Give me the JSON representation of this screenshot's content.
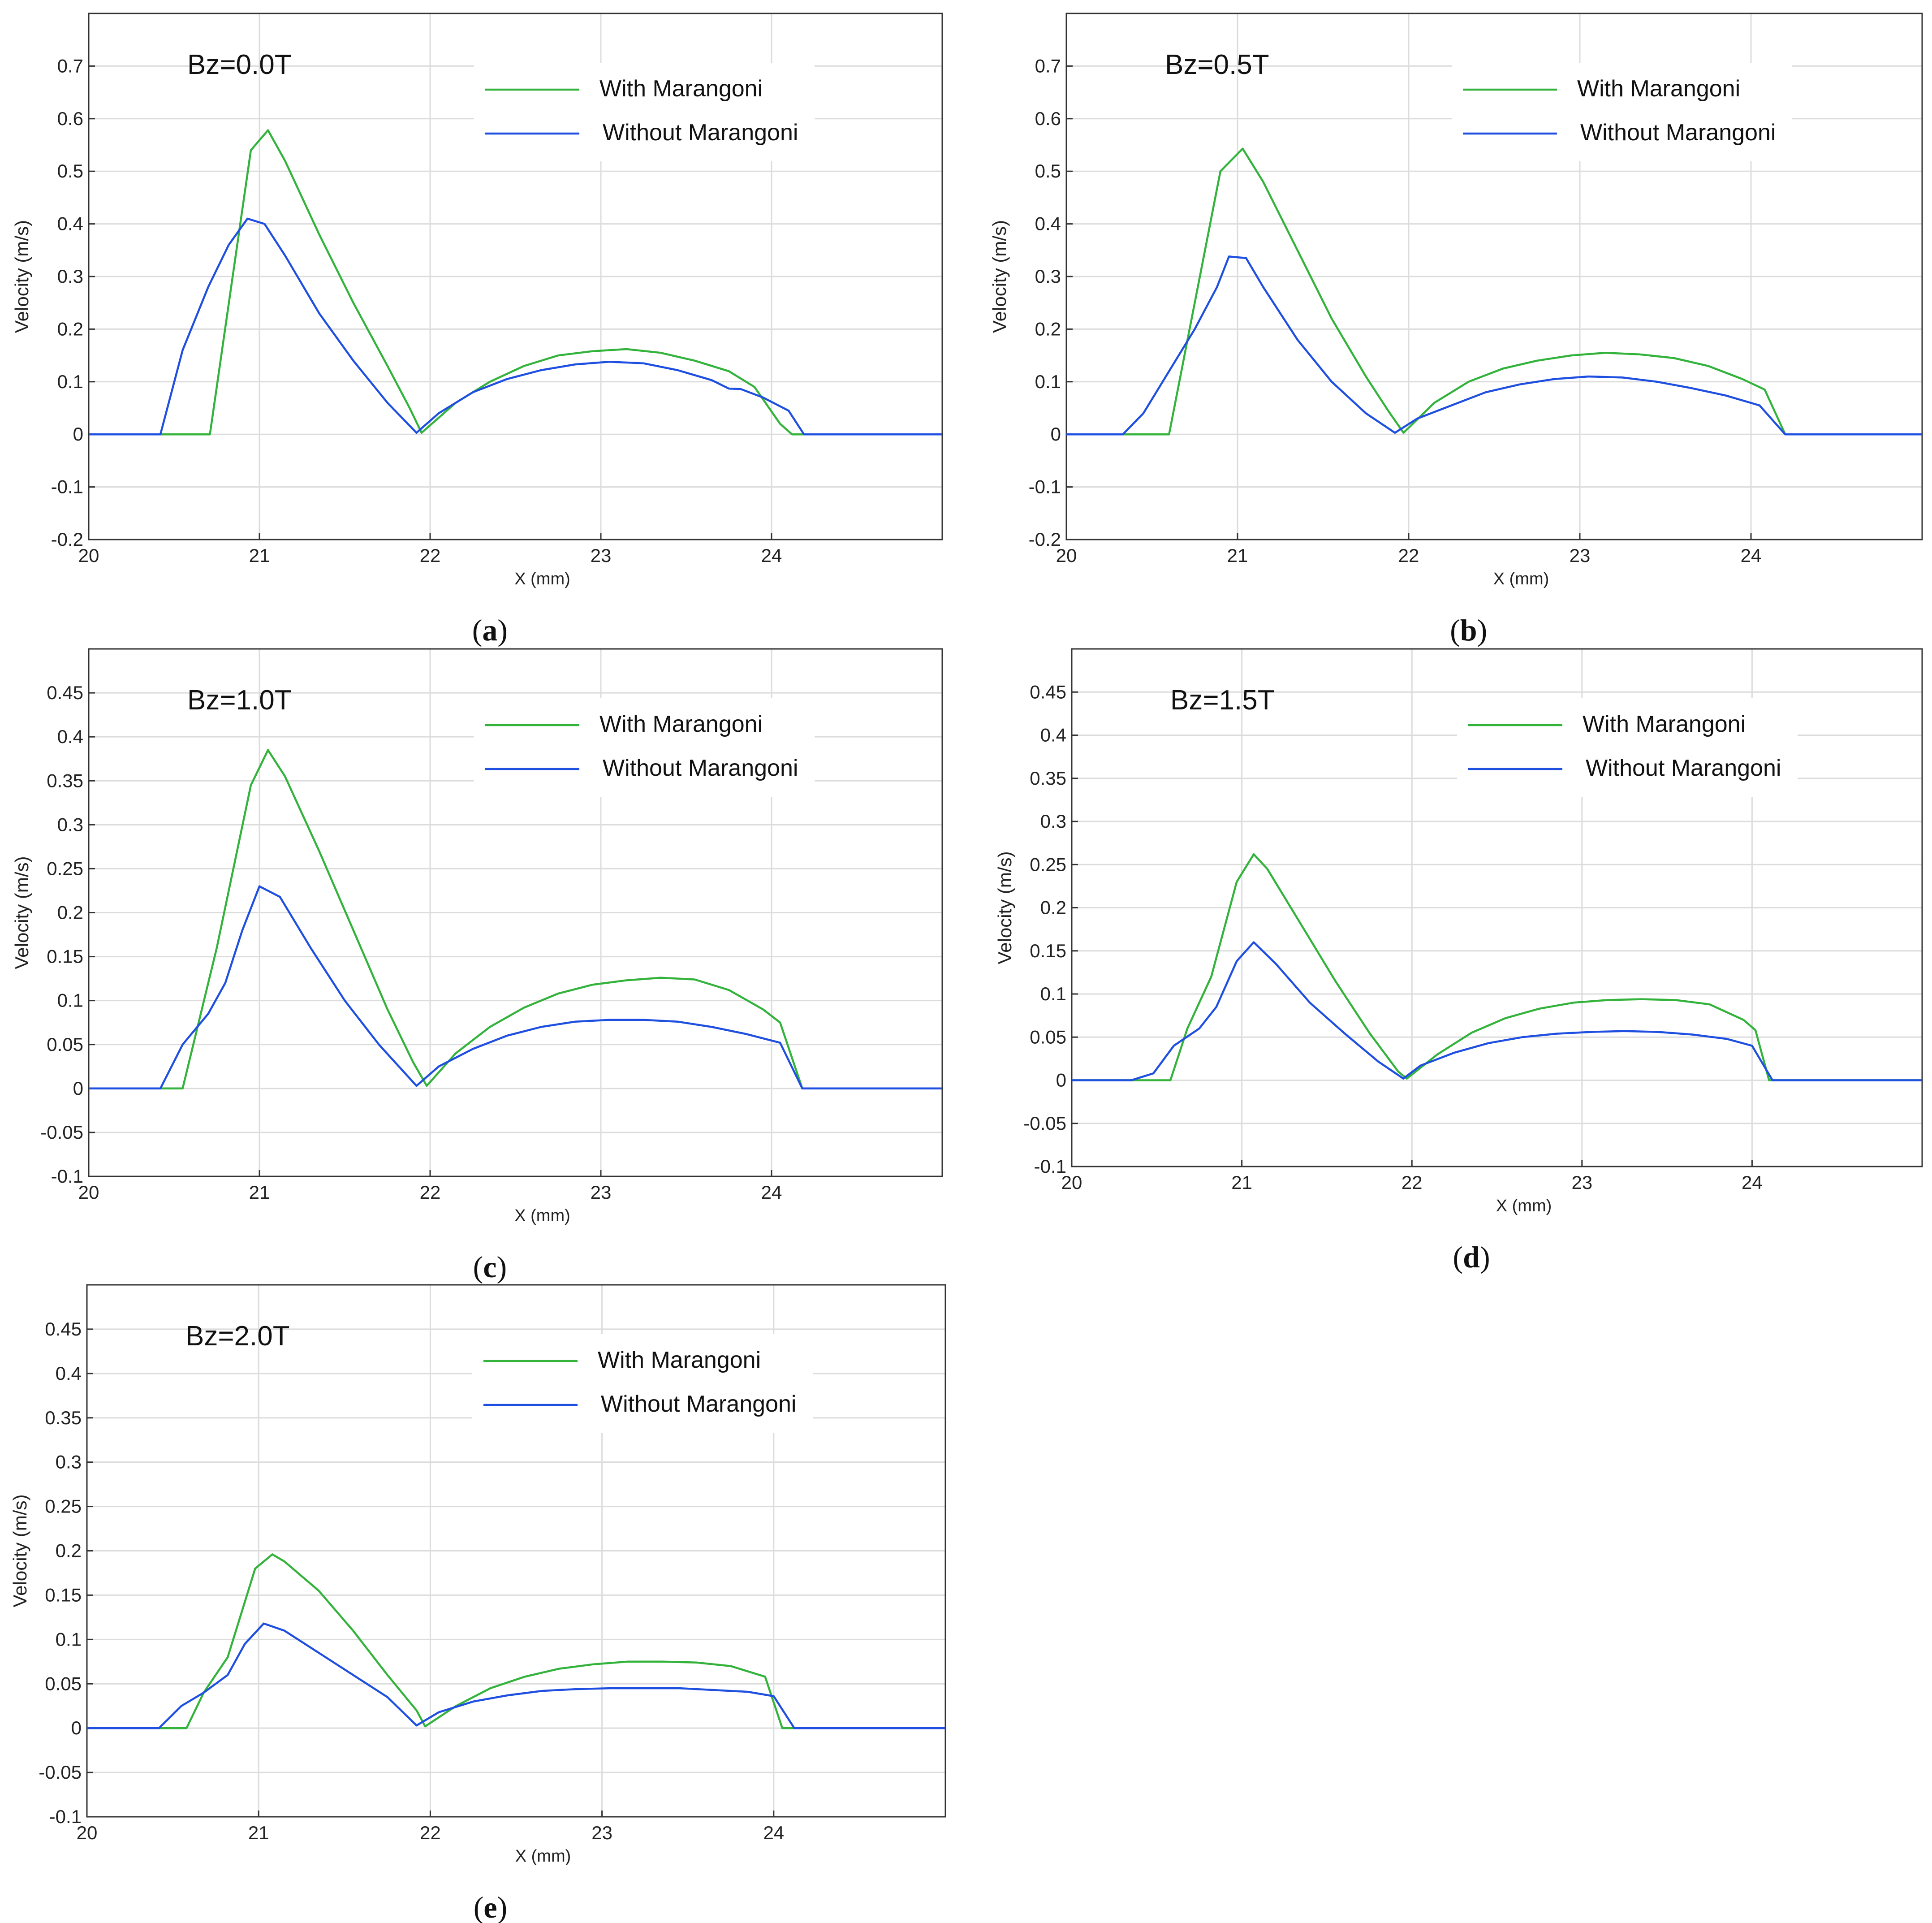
{
  "colors": {
    "with": "#33b33c",
    "without": "#1f4fe0",
    "grid": "#dcdcdc",
    "frame": "#333333"
  },
  "legend": {
    "with": "With Marangoni",
    "without": "Without Marangoni"
  },
  "chart_data": [
    {
      "id": "a",
      "type": "line",
      "caption_letter": "a",
      "title": "Bz=0.0T",
      "xlabel": "X  (mm)",
      "ylabel": "Velocity  (m/s)",
      "xlim": [
        20,
        25
      ],
      "ylim": [
        -0.2,
        0.8
      ],
      "xticks": [
        20,
        21,
        22,
        23,
        24
      ],
      "yticks": [
        -0.2,
        -0.1,
        0,
        0.1,
        0.2,
        0.3,
        0.4,
        0.5,
        0.6,
        0.7
      ],
      "ytick_labels": [
        "-0.2",
        "-0.1",
        "0",
        "0.1",
        "0.2",
        "0.3",
        "0.4",
        "0.5",
        "0.6",
        "0.7"
      ],
      "series": [
        {
          "name": "With Marangoni",
          "x": [
            20,
            20.71,
            20.95,
            21.05,
            21.15,
            21.35,
            21.55,
            21.75,
            21.88,
            21.95,
            22.15,
            22.35,
            22.55,
            22.75,
            22.95,
            23.15,
            23.35,
            23.55,
            23.75,
            23.9,
            24.05,
            24.12,
            25
          ],
          "y": [
            0,
            0,
            0.54,
            0.578,
            0.52,
            0.38,
            0.25,
            0.13,
            0.05,
            0.003,
            0.06,
            0.1,
            0.13,
            0.15,
            0.158,
            0.162,
            0.155,
            0.14,
            0.12,
            0.09,
            0.02,
            0,
            0
          ]
        },
        {
          "name": "Without Marangoni",
          "x": [
            20,
            20.42,
            20.55,
            20.7,
            20.82,
            20.93,
            21.03,
            21.15,
            21.35,
            21.55,
            21.75,
            21.92,
            22.05,
            22.25,
            22.45,
            22.65,
            22.85,
            23.05,
            23.25,
            23.45,
            23.65,
            23.75,
            23.82,
            23.95,
            24.1,
            24.19,
            25
          ],
          "y": [
            0,
            0,
            0.16,
            0.28,
            0.36,
            0.41,
            0.4,
            0.34,
            0.23,
            0.14,
            0.06,
            0.003,
            0.04,
            0.08,
            0.105,
            0.122,
            0.133,
            0.138,
            0.135,
            0.122,
            0.103,
            0.087,
            0.086,
            0.07,
            0.045,
            0,
            0
          ]
        }
      ]
    },
    {
      "id": "b",
      "type": "line",
      "caption_letter": "b",
      "title": "Bz=0.5T",
      "xlabel": "X  (mm)",
      "ylabel": "Velocity  (m/s)",
      "xlim": [
        20,
        25
      ],
      "ylim": [
        -0.2,
        0.8
      ],
      "xticks": [
        20,
        21,
        22,
        23,
        24
      ],
      "yticks": [
        -0.2,
        -0.1,
        0,
        0.1,
        0.2,
        0.3,
        0.4,
        0.5,
        0.6,
        0.7
      ],
      "ytick_labels": [
        "-0.2",
        "-0.1",
        "0",
        "0.1",
        "0.2",
        "0.3",
        "0.4",
        "0.5",
        "0.6",
        "0.7"
      ],
      "series": [
        {
          "name": "With Marangoni",
          "x": [
            20,
            20.6,
            20.75,
            20.9,
            21.03,
            21.15,
            21.35,
            21.55,
            21.75,
            21.88,
            21.97,
            22.15,
            22.35,
            22.55,
            22.75,
            22.95,
            23.15,
            23.35,
            23.55,
            23.75,
            23.95,
            24.08,
            24.2,
            25
          ],
          "y": [
            0,
            0,
            0.25,
            0.5,
            0.543,
            0.48,
            0.35,
            0.22,
            0.11,
            0.045,
            0.003,
            0.06,
            0.1,
            0.125,
            0.14,
            0.15,
            0.155,
            0.152,
            0.145,
            0.13,
            0.105,
            0.085,
            0,
            0
          ]
        },
        {
          "name": "Without Marangoni",
          "x": [
            20,
            20.33,
            20.45,
            20.6,
            20.75,
            20.88,
            20.95,
            21.05,
            21.15,
            21.35,
            21.55,
            21.75,
            21.92,
            22.05,
            22.25,
            22.45,
            22.65,
            22.85,
            23.05,
            23.25,
            23.45,
            23.65,
            23.85,
            24.05,
            24.2,
            25
          ],
          "y": [
            0,
            0,
            0.04,
            0.12,
            0.2,
            0.28,
            0.338,
            0.335,
            0.28,
            0.18,
            0.1,
            0.04,
            0.003,
            0.03,
            0.055,
            0.08,
            0.095,
            0.105,
            0.11,
            0.108,
            0.1,
            0.088,
            0.074,
            0.055,
            0,
            0
          ]
        }
      ]
    },
    {
      "id": "c",
      "type": "line",
      "caption_letter": "c",
      "title": "Bz=1.0T",
      "xlabel": "X  (mm)",
      "ylabel": "Velocity  (m/s)",
      "xlim": [
        20,
        25
      ],
      "ylim": [
        -0.1,
        0.5
      ],
      "xticks": [
        20,
        21,
        22,
        23,
        24
      ],
      "yticks": [
        -0.1,
        -0.05,
        0,
        0.05,
        0.1,
        0.15,
        0.2,
        0.25,
        0.3,
        0.35,
        0.4,
        0.45
      ],
      "ytick_labels": [
        "-0.1",
        "-0.05",
        "0",
        "0.05",
        "0.1",
        "0.15",
        "0.2",
        "0.25",
        "0.3",
        "0.35",
        "0.4",
        "0.45"
      ],
      "series": [
        {
          "name": "With Marangoni",
          "x": [
            20,
            20.55,
            20.75,
            20.95,
            21.05,
            21.15,
            21.35,
            21.55,
            21.75,
            21.9,
            21.98,
            22.15,
            22.35,
            22.55,
            22.75,
            22.95,
            23.15,
            23.35,
            23.55,
            23.75,
            23.95,
            24.05,
            24.18,
            25
          ],
          "y": [
            0,
            0,
            0.16,
            0.345,
            0.385,
            0.355,
            0.27,
            0.18,
            0.09,
            0.03,
            0.003,
            0.04,
            0.07,
            0.092,
            0.108,
            0.118,
            0.123,
            0.126,
            0.124,
            0.112,
            0.09,
            0.075,
            0,
            0
          ]
        },
        {
          "name": "Without Marangoni",
          "x": [
            20,
            20.42,
            20.55,
            20.7,
            20.8,
            20.9,
            21.0,
            21.12,
            21.3,
            21.5,
            21.7,
            21.92,
            22.05,
            22.25,
            22.45,
            22.65,
            22.85,
            23.05,
            23.25,
            23.45,
            23.65,
            23.85,
            24.05,
            24.18,
            25
          ],
          "y": [
            0,
            0,
            0.05,
            0.085,
            0.12,
            0.18,
            0.23,
            0.218,
            0.16,
            0.1,
            0.05,
            0.003,
            0.025,
            0.045,
            0.06,
            0.07,
            0.076,
            0.078,
            0.078,
            0.076,
            0.07,
            0.062,
            0.052,
            0,
            0
          ]
        }
      ]
    },
    {
      "id": "d",
      "type": "line",
      "caption_letter": "d",
      "title": "Bz=1.5T",
      "xlabel": "X  (mm)",
      "ylabel": "Velocity  (m/s)",
      "xlim": [
        20,
        25
      ],
      "ylim": [
        -0.1,
        0.5
      ],
      "xticks": [
        20,
        21,
        22,
        23,
        24
      ],
      "yticks": [
        -0.1,
        -0.05,
        0,
        0.05,
        0.1,
        0.15,
        0.2,
        0.25,
        0.3,
        0.35,
        0.4,
        0.45
      ],
      "ytick_labels": [
        "-0.1",
        "-0.05",
        "0",
        "0.05",
        "0.1",
        "0.15",
        "0.2",
        "0.25",
        "0.3",
        "0.35",
        "0.4",
        "0.45"
      ],
      "series": [
        {
          "name": "With Marangoni",
          "x": [
            20,
            20.58,
            20.68,
            20.82,
            20.97,
            21.07,
            21.15,
            21.35,
            21.55,
            21.75,
            21.92,
            21.97,
            22.15,
            22.35,
            22.55,
            22.75,
            22.95,
            23.15,
            23.35,
            23.55,
            23.75,
            23.95,
            24.02,
            24.1,
            25
          ],
          "y": [
            0,
            0,
            0.06,
            0.12,
            0.23,
            0.262,
            0.245,
            0.18,
            0.115,
            0.055,
            0.01,
            0.002,
            0.03,
            0.055,
            0.072,
            0.083,
            0.09,
            0.093,
            0.094,
            0.093,
            0.088,
            0.07,
            0.058,
            0,
            0
          ]
        },
        {
          "name": "Without Marangoni",
          "x": [
            20,
            20.35,
            20.48,
            20.6,
            20.75,
            20.85,
            20.97,
            21.07,
            21.2,
            21.4,
            21.6,
            21.8,
            21.95,
            22.05,
            22.25,
            22.45,
            22.65,
            22.85,
            23.05,
            23.25,
            23.45,
            23.65,
            23.85,
            24.0,
            24.12,
            25
          ],
          "y": [
            0,
            0,
            0.008,
            0.04,
            0.06,
            0.085,
            0.138,
            0.16,
            0.135,
            0.09,
            0.055,
            0.022,
            0.002,
            0.017,
            0.032,
            0.043,
            0.05,
            0.054,
            0.056,
            0.057,
            0.056,
            0.053,
            0.048,
            0.04,
            0,
            0
          ]
        }
      ]
    },
    {
      "id": "e",
      "type": "line",
      "caption_letter": "e",
      "title": "Bz=2.0T",
      "xlabel": "X  (mm)",
      "ylabel": "Velocity  (m/s)",
      "xlim": [
        20,
        25
      ],
      "ylim": [
        -0.1,
        0.5
      ],
      "xticks": [
        20,
        21,
        22,
        23,
        24
      ],
      "yticks": [
        -0.1,
        -0.05,
        0,
        0.05,
        0.1,
        0.15,
        0.2,
        0.25,
        0.3,
        0.35,
        0.4,
        0.45
      ],
      "ytick_labels": [
        "-0.1",
        "-0.05",
        "0",
        "0.05",
        "0.1",
        "0.15",
        "0.2",
        "0.25",
        "0.3",
        "0.35",
        "0.4",
        "0.45"
      ],
      "series": [
        {
          "name": "With Marangoni",
          "x": [
            20,
            20.58,
            20.68,
            20.82,
            20.98,
            21.08,
            21.15,
            21.35,
            21.55,
            21.75,
            21.92,
            21.97,
            22.15,
            22.35,
            22.55,
            22.75,
            22.95,
            23.15,
            23.35,
            23.55,
            23.75,
            23.95,
            24.05,
            25
          ],
          "y": [
            0,
            0,
            0.04,
            0.08,
            0.18,
            0.196,
            0.188,
            0.155,
            0.11,
            0.06,
            0.02,
            0.002,
            0.025,
            0.045,
            0.058,
            0.067,
            0.072,
            0.075,
            0.075,
            0.074,
            0.07,
            0.058,
            0,
            0
          ]
        },
        {
          "name": "Without Marangoni",
          "x": [
            20,
            20.42,
            20.55,
            20.68,
            20.82,
            20.92,
            21.03,
            21.15,
            21.35,
            21.55,
            21.75,
            21.92,
            22.05,
            22.25,
            22.45,
            22.65,
            22.85,
            23.05,
            23.25,
            23.45,
            23.65,
            23.85,
            24.0,
            24.12,
            25
          ],
          "y": [
            0,
            0,
            0.025,
            0.04,
            0.06,
            0.095,
            0.118,
            0.11,
            0.085,
            0.06,
            0.035,
            0.003,
            0.018,
            0.03,
            0.037,
            0.042,
            0.044,
            0.045,
            0.045,
            0.045,
            0.043,
            0.041,
            0.036,
            0,
            0
          ]
        }
      ]
    }
  ]
}
